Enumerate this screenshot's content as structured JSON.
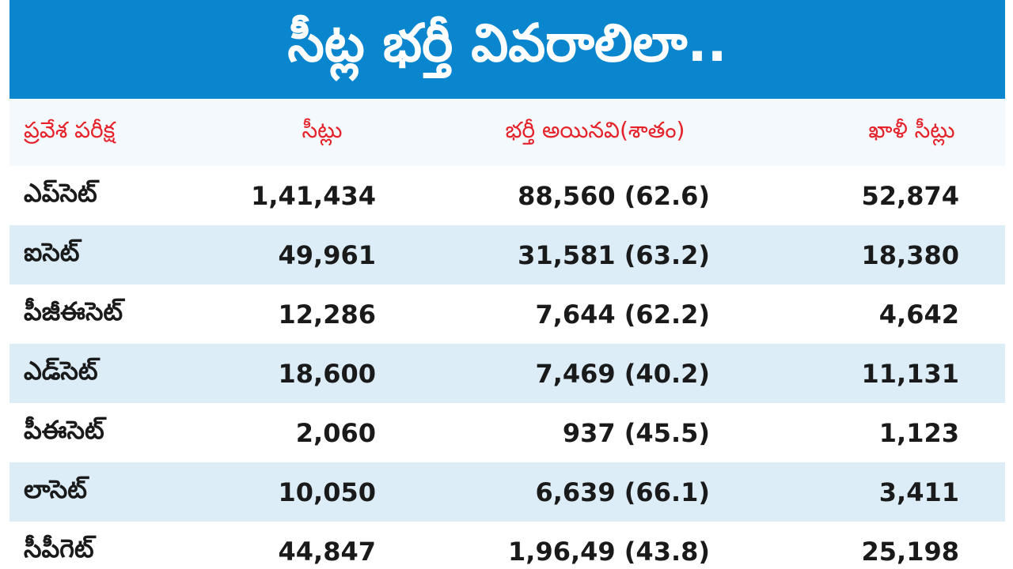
{
  "header": {
    "title": "సీట్ల భర్తీ వివరాలిలా.."
  },
  "table": {
    "columns": [
      "ప్రవేశ పరీక్ష",
      "సీట్లు",
      "భర్తీ అయినవి(శాతం)",
      "ఖాళీ సీట్లు"
    ],
    "rows": [
      [
        "ఎప్‌సెట్",
        "1,41,434",
        "88,560 (62.6)",
        "52,874"
      ],
      [
        "ఐసెట్",
        "49,961",
        "31,581 (63.2)",
        "18,380"
      ],
      [
        "పీజీఈసెట్",
        "12,286",
        "7,644 (62.2)",
        "4,642"
      ],
      [
        "ఎడ్‌సెట్",
        "18,600",
        "7,469 (40.2)",
        "11,131"
      ],
      [
        "పీఈసెట్",
        "2,060",
        "937 (45.5)",
        "1,123"
      ],
      [
        "లాసెట్",
        "10,050",
        "6,639 (66.1)",
        "3,411"
      ],
      [
        "సీపీగెట్",
        "44,847",
        "1,96,49 (43.8)",
        "25,198"
      ]
    ]
  }
}
